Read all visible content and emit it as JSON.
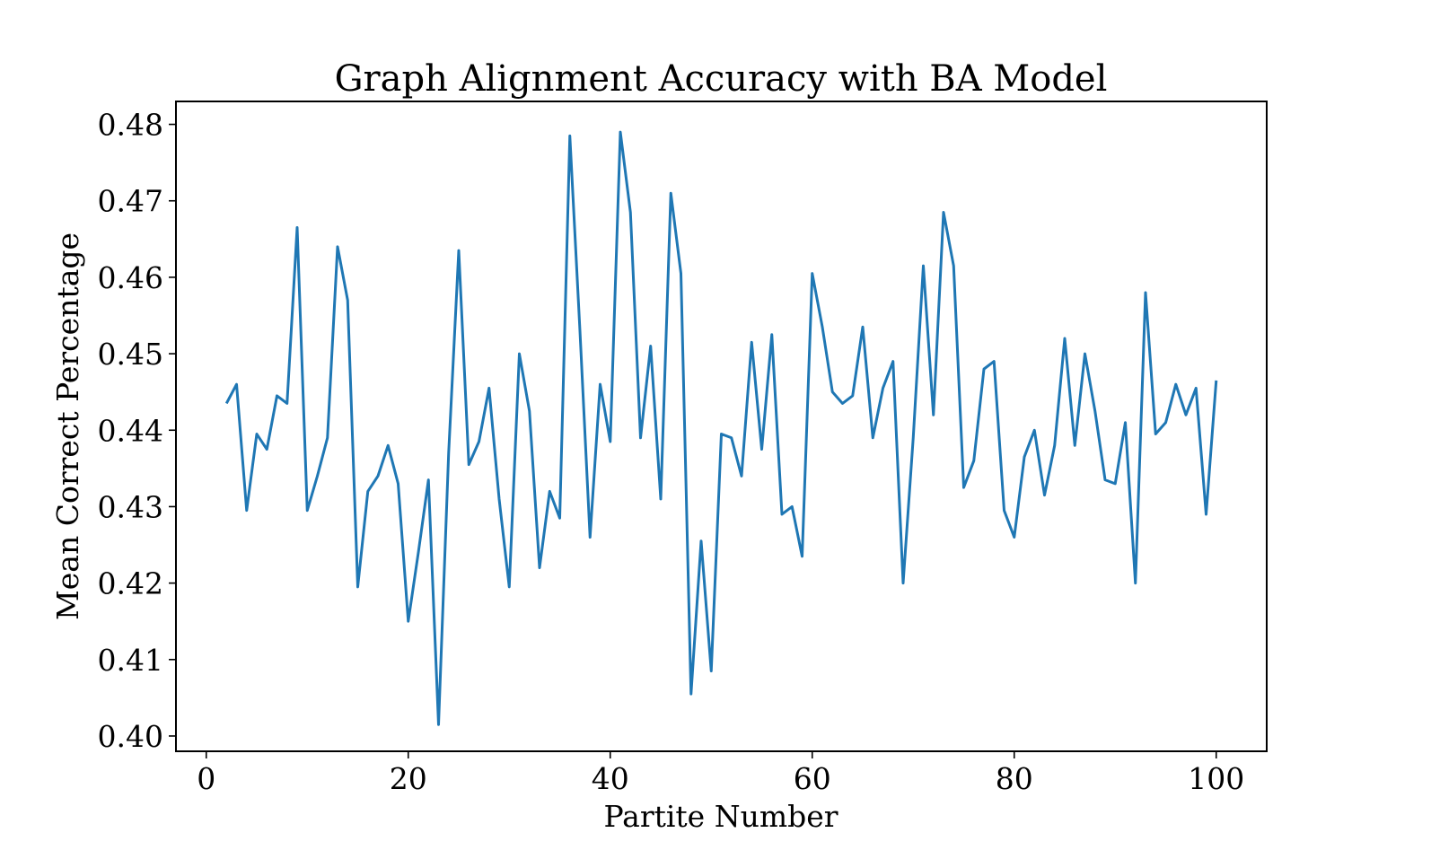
{
  "chart_data": {
    "type": "line",
    "title": "Graph Alignment Accuracy with BA Model",
    "xlabel": "Partite Number",
    "ylabel": "Mean Correct Percentage",
    "xlim": [
      -3,
      105
    ],
    "ylim": [
      0.398,
      0.483
    ],
    "xticks": [
      0,
      20,
      40,
      60,
      80,
      100
    ],
    "xtick_labels": [
      "0",
      "20",
      "40",
      "60",
      "80",
      "100"
    ],
    "yticks": [
      0.4,
      0.41,
      0.42,
      0.43,
      0.44,
      0.45,
      0.46,
      0.47,
      0.48
    ],
    "ytick_labels": [
      "0.40",
      "0.41",
      "0.42",
      "0.43",
      "0.44",
      "0.45",
      "0.46",
      "0.47",
      "0.48"
    ],
    "grid": false,
    "legend": "none",
    "series": [
      {
        "color": "#1f77b4",
        "x": [
          2,
          3,
          4,
          5,
          6,
          7,
          8,
          9,
          10,
          11,
          12,
          13,
          14,
          15,
          16,
          17,
          18,
          19,
          20,
          21,
          22,
          23,
          24,
          25,
          26,
          27,
          28,
          29,
          30,
          31,
          32,
          33,
          34,
          35,
          36,
          37,
          38,
          39,
          40,
          41,
          42,
          43,
          44,
          45,
          46,
          47,
          48,
          49,
          50,
          51,
          52,
          53,
          54,
          55,
          56,
          57,
          58,
          59,
          60,
          61,
          62,
          63,
          64,
          65,
          66,
          67,
          68,
          69,
          70,
          71,
          72,
          73,
          74,
          75,
          76,
          77,
          78,
          79,
          80,
          81,
          82,
          83,
          84,
          85,
          86,
          87,
          88,
          89,
          90,
          91,
          92,
          93,
          94,
          95,
          96,
          97,
          98,
          99,
          100
        ],
        "y": [
          0.4435,
          0.446,
          0.4295,
          0.4395,
          0.4375,
          0.4445,
          0.4435,
          0.4665,
          0.4295,
          0.434,
          0.439,
          0.464,
          0.457,
          0.4195,
          0.432,
          0.434,
          0.438,
          0.433,
          0.415,
          0.424,
          0.4335,
          0.4015,
          0.437,
          0.4635,
          0.4355,
          0.4385,
          0.4455,
          0.431,
          0.4195,
          0.45,
          0.4425,
          0.422,
          0.432,
          0.4285,
          0.4785,
          0.453,
          0.426,
          0.446,
          0.4385,
          0.479,
          0.4685,
          0.439,
          0.451,
          0.431,
          0.471,
          0.4605,
          0.4055,
          0.4255,
          0.4085,
          0.4395,
          0.439,
          0.434,
          0.4515,
          0.4375,
          0.4525,
          0.429,
          0.43,
          0.4235,
          0.4605,
          0.4535,
          0.445,
          0.4435,
          0.4445,
          0.4535,
          0.439,
          0.4455,
          0.449,
          0.42,
          0.439,
          0.4615,
          0.442,
          0.4685,
          0.4615,
          0.4325,
          0.436,
          0.448,
          0.449,
          0.4295,
          0.426,
          0.4365,
          0.44,
          0.4315,
          0.438,
          0.452,
          0.438,
          0.45,
          0.4425,
          0.4335,
          0.433,
          0.441,
          0.42,
          0.458,
          0.4395,
          0.441,
          0.446,
          0.442,
          0.4455,
          0.429,
          0.4465
        ]
      }
    ]
  }
}
